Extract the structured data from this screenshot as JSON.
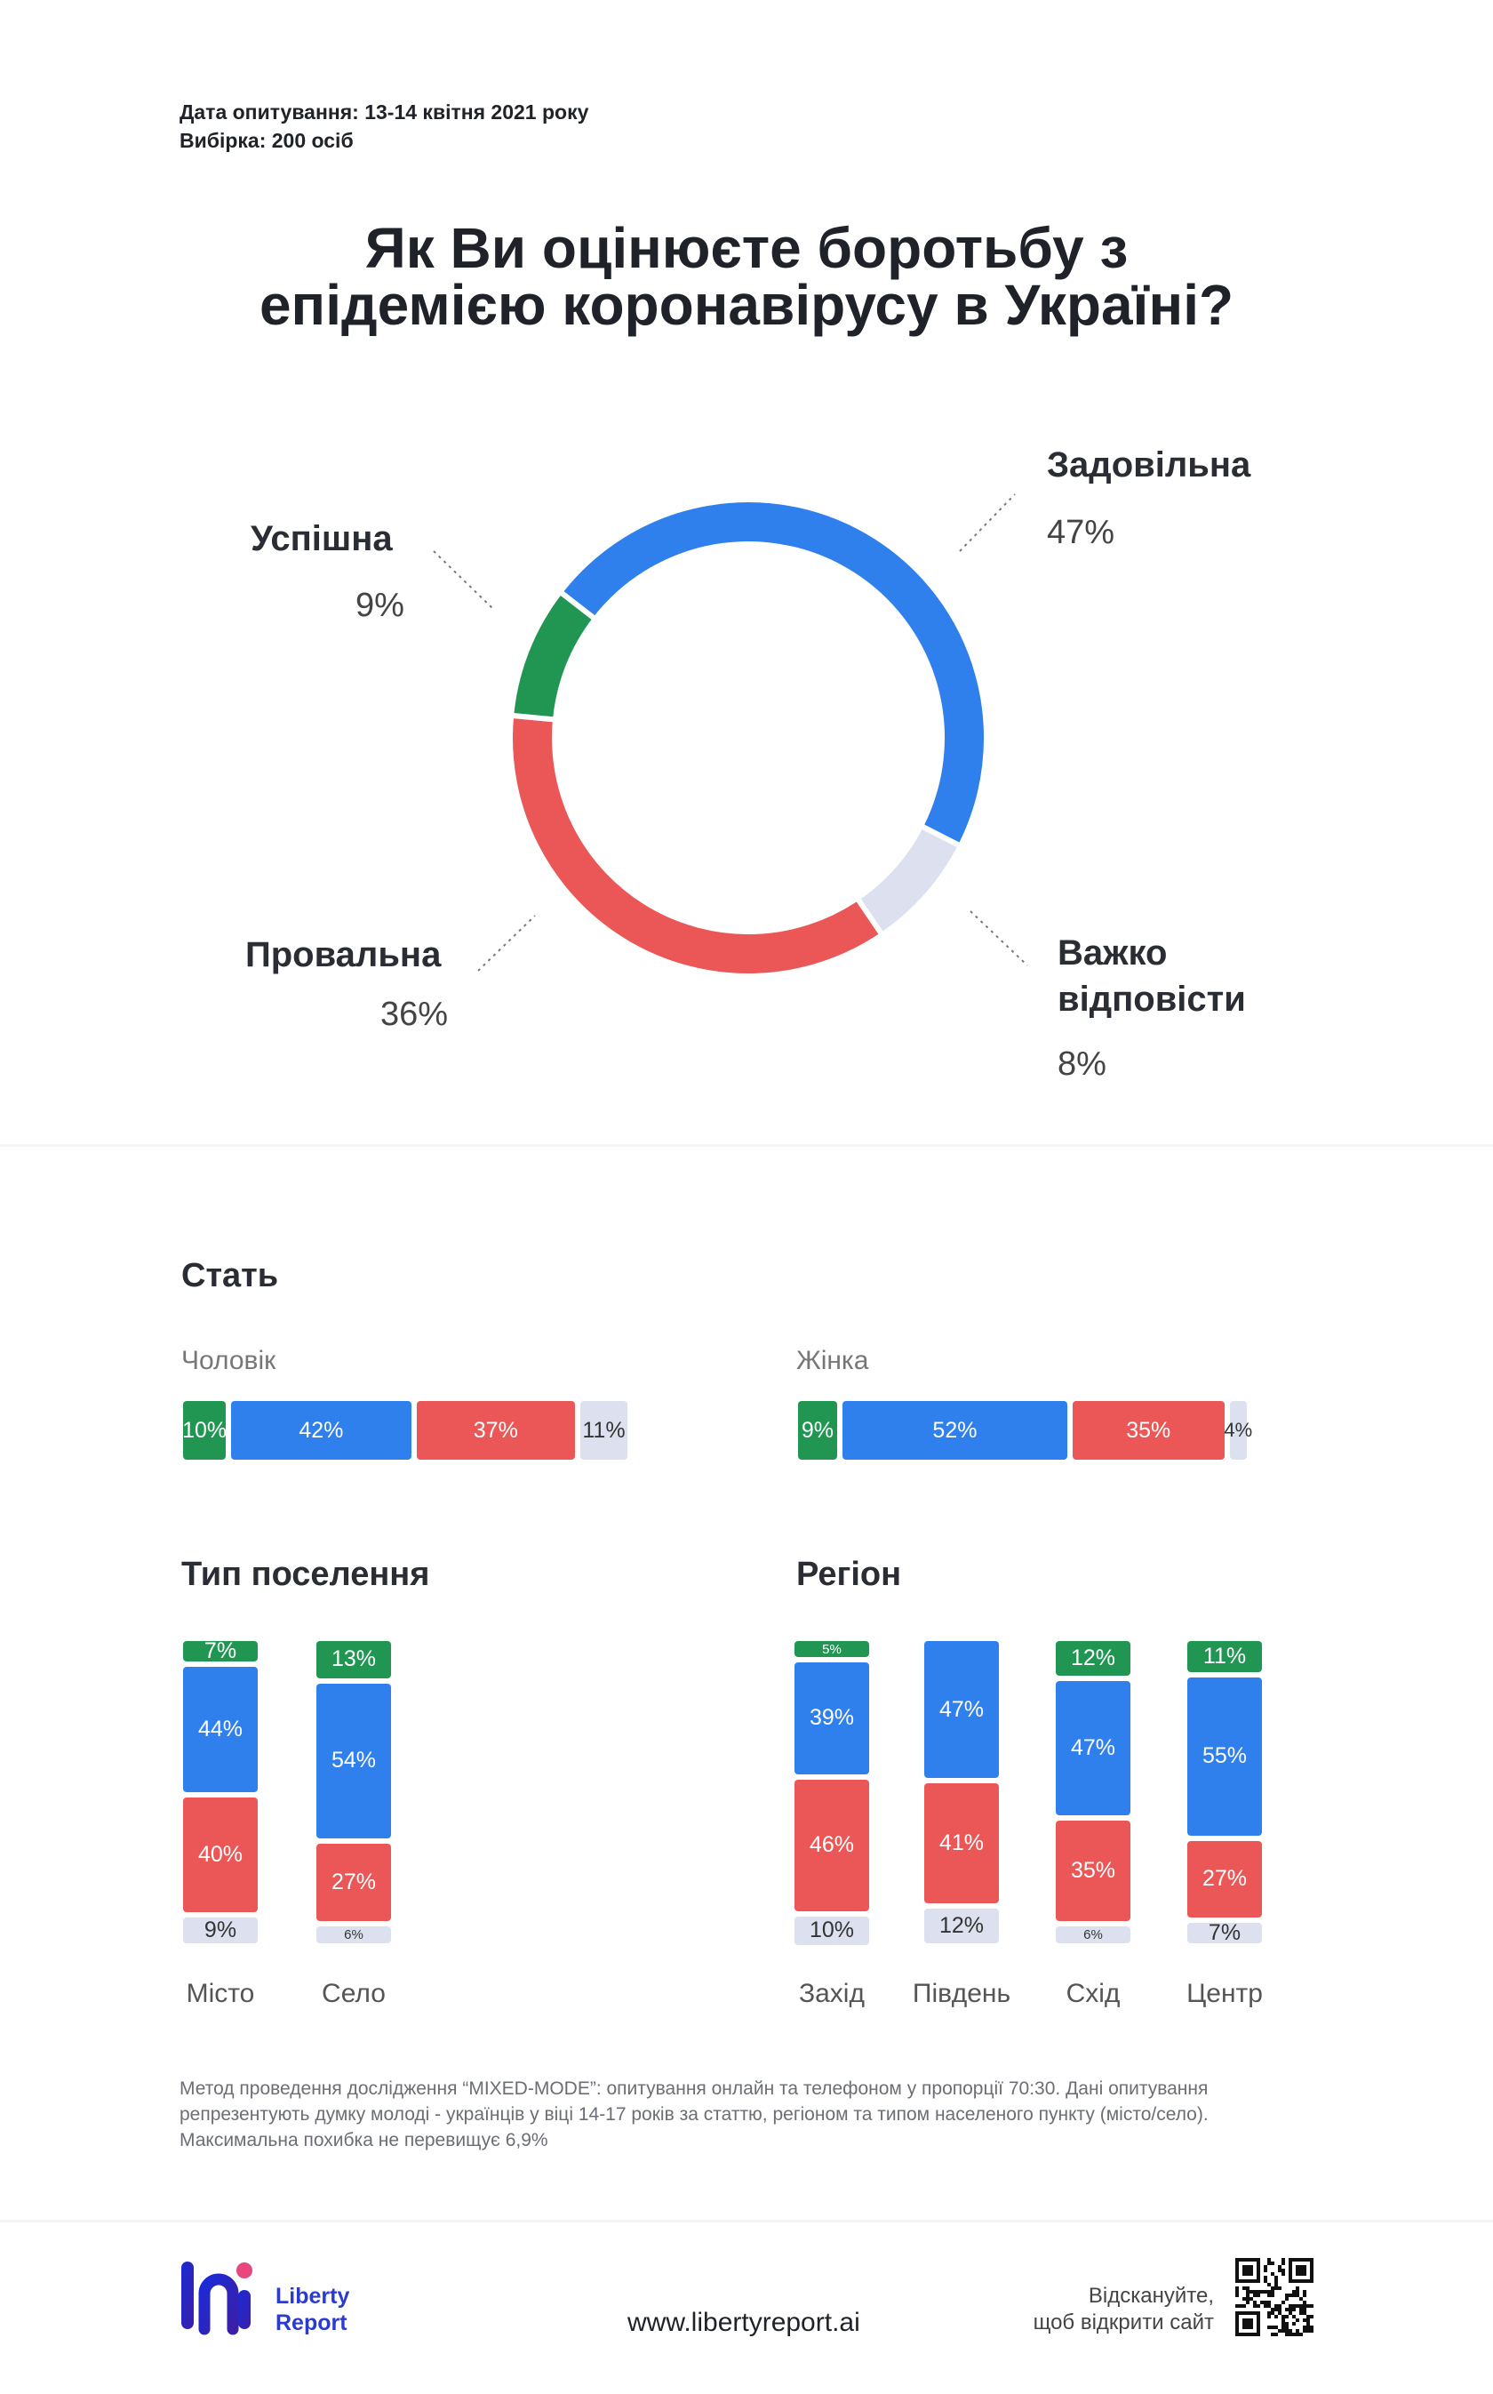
{
  "meta": {
    "survey_date": "Дата опитування: 13-14 квітня 2021 року",
    "sample": "Вибірка: 200 осіб"
  },
  "title_line1": "Як Ви оцінюєте боротьбу з",
  "title_line2": "епідемією коронавірусу в Україні?",
  "colors": {
    "green": "#219653",
    "blue": "#2f80ed",
    "red": "#eb5757",
    "light": "#dde1ef"
  },
  "chart_data": [
    {
      "type": "pie",
      "variant": "donut",
      "categories": [
        "Задовільна",
        "Важко відповісти",
        "Провальна",
        "Успішна"
      ],
      "values": [
        47,
        8,
        36,
        9
      ],
      "labels": [
        "47%",
        "8%",
        "36%",
        "9%"
      ]
    },
    {
      "type": "bar",
      "orientation": "horizontal-stacked",
      "title": "Стать",
      "categories": [
        "Чоловік",
        "Жінка"
      ],
      "series": [
        {
          "values": [
            10,
            9
          ],
          "labels": [
            "10%",
            "9%"
          ]
        },
        {
          "values": [
            42,
            52
          ],
          "labels": [
            "42%",
            "52%"
          ]
        },
        {
          "values": [
            37,
            35
          ],
          "labels": [
            "37%",
            "35%"
          ]
        },
        {
          "values": [
            11,
            4
          ],
          "labels": [
            "11%",
            "4%"
          ]
        }
      ]
    },
    {
      "type": "bar",
      "orientation": "vertical-stacked",
      "title": "Тип поселення",
      "categories": [
        "Місто",
        "Село"
      ],
      "series": [
        {
          "values": [
            7,
            13
          ],
          "labels": [
            "7%",
            "13%"
          ]
        },
        {
          "values": [
            44,
            54
          ],
          "labels": [
            "44%",
            "54%"
          ]
        },
        {
          "values": [
            40,
            27
          ],
          "labels": [
            "40%",
            "27%"
          ]
        },
        {
          "values": [
            9,
            6
          ],
          "labels": [
            "9%",
            "6%"
          ]
        }
      ]
    },
    {
      "type": "bar",
      "orientation": "vertical-stacked",
      "title": "Регіон",
      "categories": [
        "Захід",
        "Південь",
        "Схід",
        "Центр"
      ],
      "series": [
        {
          "values": [
            5,
            0,
            12,
            11
          ],
          "labels": [
            "5%",
            "",
            "12%",
            "11%"
          ]
        },
        {
          "values": [
            39,
            47,
            47,
            55
          ],
          "labels": [
            "39%",
            "47%",
            "47%",
            "55%"
          ]
        },
        {
          "values": [
            46,
            41,
            35,
            27
          ],
          "labels": [
            "46%",
            "41%",
            "35%",
            "27%"
          ]
        },
        {
          "values": [
            10,
            12,
            6,
            7
          ],
          "labels": [
            "10%",
            "12%",
            "6%",
            "7%"
          ]
        }
      ]
    }
  ],
  "pie_labels": {
    "satisfactory": "Задовільна",
    "satisfactory_pct": "47%",
    "successful": "Успішна",
    "successful_pct": "9%",
    "failed": "Провальна",
    "failed_pct": "36%",
    "hard_line1": "Важко",
    "hard_line2": "відповісти",
    "hard_pct": "8%"
  },
  "sections": {
    "gender": "Стать",
    "male": "Чоловік",
    "female": "Жінка",
    "settlement": "Тип поселення",
    "region": "Регіон"
  },
  "note": {
    "line1": "Метод проведення дослідження “MIXED-MODE”: опитування онлайн та телефоном у пропорції 70:30. Дані опитування",
    "line2": "репрезентують думку молоді - українців у віці 14-17 років за статтю, регіоном та типом населеного пункту (місто/село).",
    "line3": "Максимальна похибка не перевищує 6,9%"
  },
  "footer": {
    "logo_line1": "Liberty",
    "logo_line2": "Report",
    "website": "www.libertyreport.ai",
    "scan_line1": "Відскануйте,",
    "scan_line2": "щоб відкрити сайт",
    "qr_icon": "qr-code-icon"
  }
}
